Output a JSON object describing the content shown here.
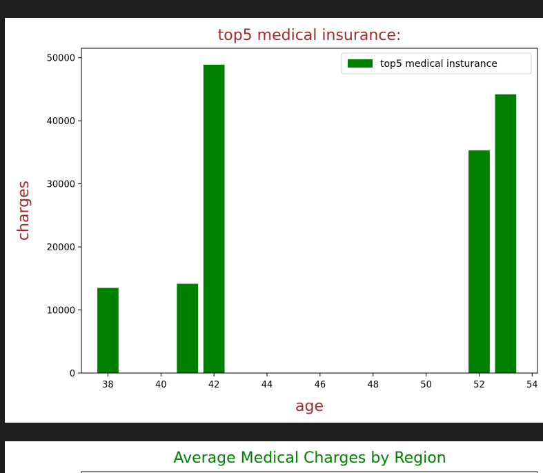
{
  "chart_data": [
    {
      "type": "bar",
      "title": "top5 medical insurance:",
      "xlabel": "age",
      "ylabel": "charges",
      "x": [
        38,
        41,
        42,
        52,
        53
      ],
      "values": [
        13500,
        14150,
        48900,
        35300,
        44200
      ],
      "xlim": [
        37,
        54.2
      ],
      "ylim": [
        0,
        51500
      ],
      "xticks": [
        38,
        40,
        42,
        44,
        46,
        48,
        50,
        52,
        54
      ],
      "yticks": [
        0,
        10000,
        20000,
        30000,
        40000,
        50000
      ],
      "legend": {
        "label": "top5 medical insturance",
        "placement": "upper-right"
      },
      "colors": {
        "bar": "#008000",
        "title": "#a52a2a",
        "axis_labels": "#a52a2a"
      },
      "grid": false
    },
    {
      "type": "bar",
      "title": "Average Medical Charges by Region",
      "colors": {
        "title": "#008000"
      }
    }
  ]
}
